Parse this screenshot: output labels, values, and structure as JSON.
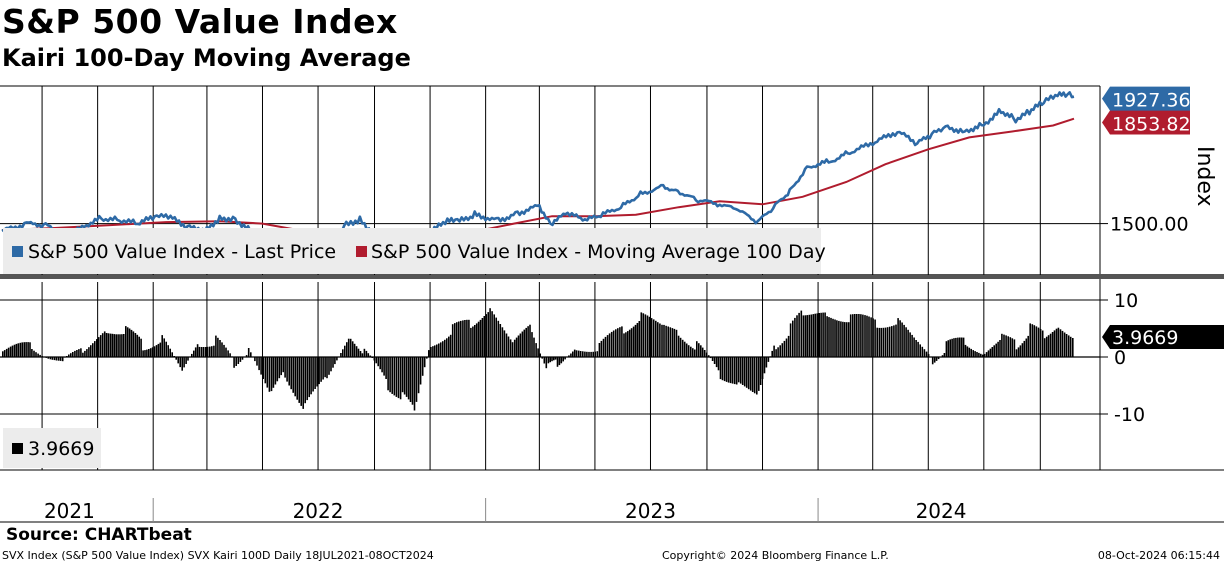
{
  "header": {
    "title": "S&P 500 Value Index",
    "subtitle": "Kairi 100-Day Moving Average"
  },
  "footer": {
    "source": "Source: CHARTbeat",
    "left": "SVX Index (S&P 500 Value Index) SVX Kairi 100D  Daily 18JUL2021-08OCT2024",
    "center": "Copyright© 2024 Bloomberg Finance L.P.",
    "right": "08-Oct-2024 06:15:44"
  },
  "colors": {
    "price": "#2e6aa6",
    "ma": "#b01c2e",
    "kairi": "#000000",
    "grid": "#000000",
    "legend_bg": "#ececec"
  },
  "chart_data": [
    {
      "type": "line",
      "ylabel": "Index",
      "y_ticks": [
        1500
      ],
      "y_tick_labels": [
        "1500.00"
      ],
      "x_ticks": [
        "2021-09-01",
        "2021-11-01",
        "2022-01-01",
        "2022-03-01",
        "2022-05-01",
        "2022-07-01",
        "2022-09-01",
        "2022-11-01",
        "2023-01-01",
        "2023-03-01",
        "2023-05-01",
        "2023-07-01",
        "2023-09-01",
        "2023-11-01",
        "2024-01-01",
        "2024-03-01",
        "2024-05-01",
        "2024-07-01",
        "2024-09-01"
      ],
      "last_value_labels": [
        "1927.36",
        "1853.82"
      ],
      "legend": [
        "S&P 500 Value Index - Last Price",
        "S&P 500 Value Index - Moving Average 100 Day"
      ],
      "series": [
        {
          "name": "S&P 500 Value Index - Last Price",
          "x": [
            "2021-07-19",
            "2021-08-15",
            "2021-09-05",
            "2021-09-25",
            "2021-10-15",
            "2021-11-05",
            "2021-11-25",
            "2021-12-15",
            "2022-01-05",
            "2022-01-20",
            "2022-02-10",
            "2022-03-01",
            "2022-03-15",
            "2022-04-01",
            "2022-04-20",
            "2022-05-10",
            "2022-05-25",
            "2022-06-16",
            "2022-07-10",
            "2022-08-01",
            "2022-08-16",
            "2022-09-05",
            "2022-09-30",
            "2022-10-15",
            "2022-11-01",
            "2022-11-20",
            "2022-12-01",
            "2022-12-20",
            "2023-01-15",
            "2023-02-05",
            "2023-03-01",
            "2023-03-13",
            "2023-04-01",
            "2023-04-20",
            "2023-05-10",
            "2023-06-01",
            "2023-06-20",
            "2023-07-15",
            "2023-07-31",
            "2023-08-20",
            "2023-09-15",
            "2023-10-05",
            "2023-10-27",
            "2023-11-15",
            "2023-12-01",
            "2023-12-20",
            "2024-01-15",
            "2024-02-05",
            "2024-03-01",
            "2024-03-28",
            "2024-04-19",
            "2024-05-05",
            "2024-05-20",
            "2024-06-10",
            "2024-07-01",
            "2024-07-20",
            "2024-08-05",
            "2024-08-20",
            "2024-09-05",
            "2024-09-20",
            "2024-10-01",
            "2024-10-08"
          ],
          "values": [
            1475,
            1500,
            1495,
            1465,
            1490,
            1518,
            1512,
            1500,
            1525,
            1520,
            1485,
            1480,
            1520,
            1515,
            1470,
            1420,
            1450,
            1390,
            1440,
            1495,
            1515,
            1450,
            1405,
            1390,
            1470,
            1510,
            1505,
            1530,
            1510,
            1535,
            1560,
            1500,
            1535,
            1510,
            1530,
            1560,
            1600,
            1625,
            1610,
            1580,
            1565,
            1545,
            1505,
            1560,
            1610,
            1690,
            1710,
            1740,
            1770,
            1810,
            1770,
            1800,
            1825,
            1810,
            1835,
            1880,
            1850,
            1875,
            1910,
            1930,
            1935,
            1927
          ]
        },
        {
          "name": "S&P 500 Value Index - Moving Average 100 Day",
          "x": [
            "2021-07-19",
            "2021-09-15",
            "2021-11-15",
            "2022-01-15",
            "2022-03-15",
            "2022-05-01",
            "2022-06-15",
            "2022-08-01",
            "2022-09-15",
            "2022-11-01",
            "2022-12-15",
            "2023-02-01",
            "2023-03-15",
            "2023-05-01",
            "2023-06-15",
            "2023-08-01",
            "2023-09-15",
            "2023-11-01",
            "2023-12-15",
            "2024-02-01",
            "2024-03-15",
            "2024-05-01",
            "2024-06-15",
            "2024-08-01",
            "2024-09-15",
            "2024-10-08"
          ],
          "values": [
            1478,
            1485,
            1495,
            1505,
            1508,
            1500,
            1475,
            1450,
            1435,
            1440,
            1470,
            1500,
            1525,
            1525,
            1530,
            1555,
            1575,
            1565,
            1590,
            1640,
            1700,
            1750,
            1790,
            1810,
            1830,
            1853
          ]
        }
      ]
    },
    {
      "type": "bar",
      "ylabel": "",
      "y_ticks": [
        10,
        0,
        -10
      ],
      "y_tick_labels": [
        "10",
        "0",
        "-10"
      ],
      "last_value_label": "3.9669",
      "legend": [
        "3.9669"
      ],
      "x": [
        "2021-07-19",
        "2021-08-20",
        "2021-09-25",
        "2021-10-15",
        "2021-11-10",
        "2021-12-01",
        "2021-12-20",
        "2022-01-10",
        "2022-02-01",
        "2022-02-20",
        "2022-03-10",
        "2022-03-30",
        "2022-04-15",
        "2022-05-10",
        "2022-05-25",
        "2022-06-16",
        "2022-07-10",
        "2022-08-05",
        "2022-08-20",
        "2022-09-15",
        "2022-10-01",
        "2022-10-14",
        "2022-11-01",
        "2022-11-25",
        "2022-12-15",
        "2023-01-05",
        "2023-02-01",
        "2023-02-20",
        "2023-03-10",
        "2023-03-20",
        "2023-04-10",
        "2023-05-05",
        "2023-06-01",
        "2023-06-20",
        "2023-07-15",
        "2023-07-31",
        "2023-08-20",
        "2023-09-15",
        "2023-10-05",
        "2023-10-27",
        "2023-11-15",
        "2023-12-01",
        "2023-12-15",
        "2024-01-10",
        "2024-02-05",
        "2024-03-05",
        "2024-03-28",
        "2024-04-19",
        "2024-05-05",
        "2024-05-20",
        "2024-06-10",
        "2024-07-01",
        "2024-07-20",
        "2024-08-05",
        "2024-08-20",
        "2024-09-05",
        "2024-09-20",
        "2024-10-08"
      ],
      "values": [
        1,
        2,
        -1,
        1.5,
        4,
        5,
        2,
        3,
        -2,
        2,
        3,
        -1,
        1,
        -6,
        -3,
        -9,
        -3,
        3,
        1,
        -5,
        -7,
        -9,
        2,
        5,
        6,
        8,
        3,
        5,
        -2,
        -1,
        1,
        2,
        5,
        7,
        6,
        4,
        2,
        -3,
        -5,
        -6,
        2,
        5,
        8,
        7,
        7,
        6,
        6,
        3,
        -1,
        2,
        3,
        0,
        4,
        2,
        5,
        4,
        5,
        3.97
      ]
    }
  ]
}
